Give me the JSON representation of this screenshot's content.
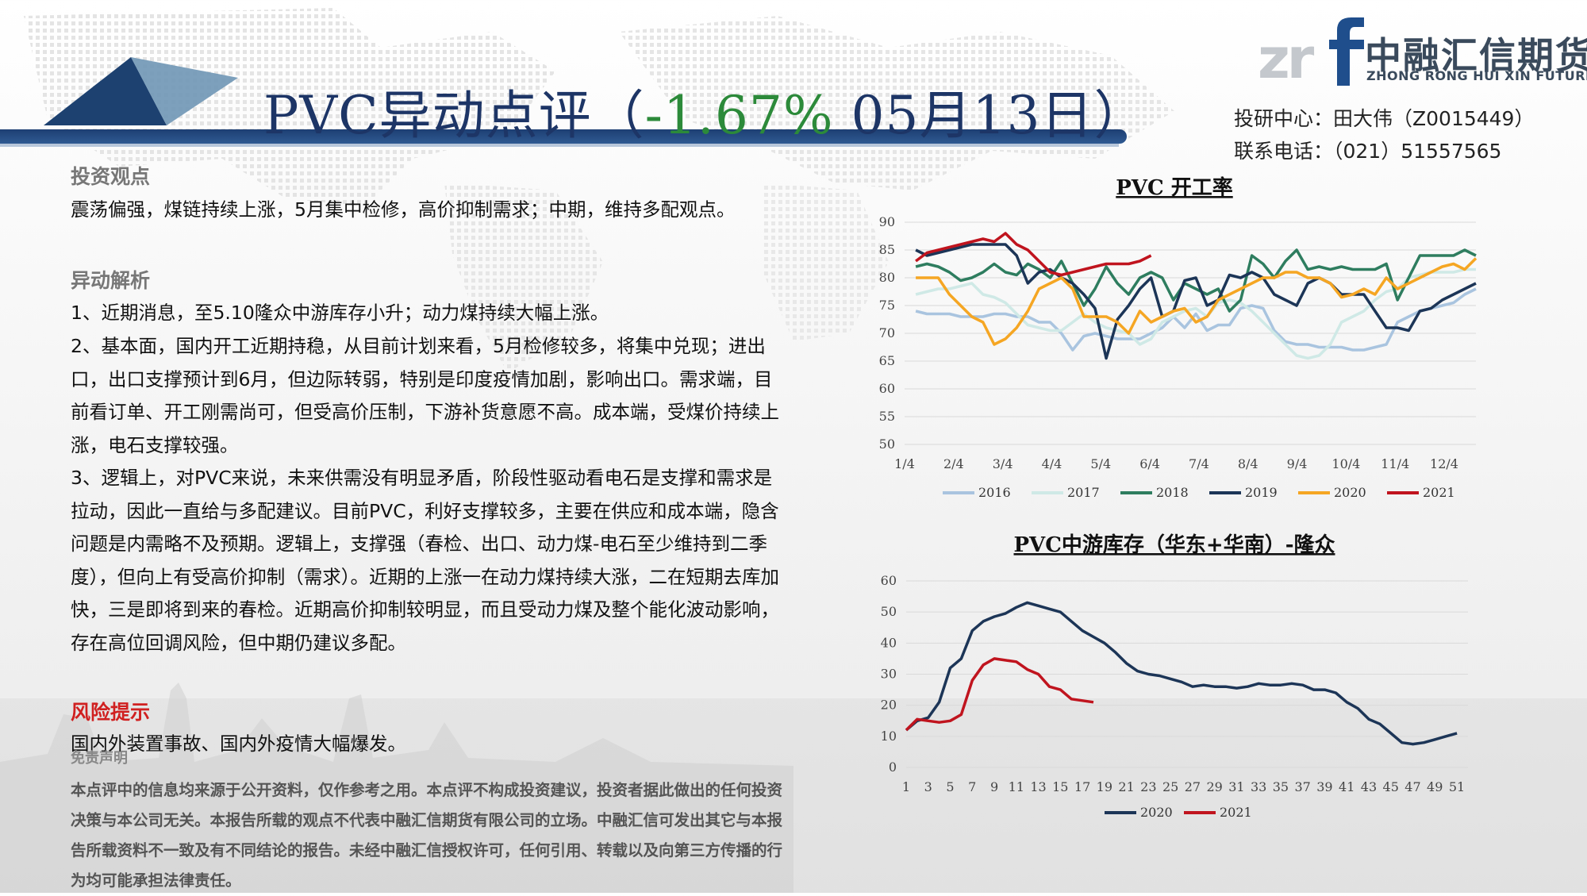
{
  "header": {
    "title_main": "PVC异动点评",
    "title_open": "（",
    "change": "-1.67%",
    "date": " 05月13日",
    "title_close": "）"
  },
  "brand": {
    "name_cn": "中融汇信期货",
    "name_en": "ZHONG RONG HUI XIN FUTURES",
    "colors": {
      "navy": "#1d3f73",
      "logo_blue": "#1f4e8c",
      "gray": "#c4c8cd"
    }
  },
  "contact": {
    "line1": "投研中心：田大伟（Z0015449）",
    "line2": "联系电话：（021）51557565"
  },
  "view": {
    "heading": "投资观点",
    "text": "震荡偏强，煤链持续上涨，5月集中检修，高价抑制需求；中期，维持多配观点。"
  },
  "analysis": {
    "heading": "异动解析",
    "p1": "1、近期消息，至5.10隆众中游库存小升；动力煤持续大幅上涨。",
    "p2": "2、基本面，国内开工近期持稳，从目前计划来看，5月检修较多，将集中兑现；进出口，出口支撑预计到6月，但边际转弱，特别是印度疫情加剧，影响出口。需求端，目前看订单、开工刚需尚可，但受高价压制，下游补货意愿不高。成本端，受煤价持续上涨，电石支撑较强。",
    "p3": "3、逻辑上，对PVC来说，未来供需没有明显矛盾，阶段性驱动看电石是支撑和需求是拉动，因此一直给与多配建议。目前PVC，利好支撑较多，主要在供应和成本端，隐含问题是内需略不及预期。逻辑上，支撑强（春检、出口、动力煤-电石至少维持到二季度），但向上有受高价抑制（需求）。近期的上涨一在动力煤持续大涨，二在短期去库加快，三是即将到来的春检。近期高价抑制较明显，而且受动力煤及整个能化波动影响，存在高位回调风险，但中期仍建议多配。"
  },
  "risk": {
    "heading": "风险提示",
    "text": "国内外装置事故、国内外疫情大幅爆发。"
  },
  "disclaimer": {
    "heading": "免责声明",
    "text": "本点评中的信息均来源于公开资料，仅作参考之用。本点评不构成投资建议，投资者据此做出的任何投资决策与本公司无关。本报告所载的观点不代表中融汇信期货有限公司的立场。中融汇信可发出其它与本报告所载资料不一致及有不同结论的报告。未经中融汇信授权许可，任何引用、转载以及向第三方传播的行为均可能承担法律责任。"
  },
  "chart_data": [
    {
      "type": "line",
      "title": "PVC 开工率",
      "x_tick_labels": [
        "1/4",
        "2/4",
        "3/4",
        "4/4",
        "5/4",
        "6/4",
        "7/4",
        "8/4",
        "9/4",
        "10/4",
        "11/4",
        "12/4"
      ],
      "y_ticks": [
        50,
        55,
        60,
        65,
        70,
        75,
        80,
        85,
        90
      ],
      "ylim": [
        50,
        90
      ],
      "x_unit": "week index (0 = 1/4, 4.33 weeks per month)",
      "xlim": [
        0,
        51
      ],
      "grid": "horizontal",
      "legend_position": "bottom",
      "series": [
        {
          "name": "2016",
          "color": "#a9c4df",
          "x": [
            1,
            2,
            3,
            4,
            5,
            6,
            7,
            8,
            9,
            10,
            11,
            12,
            13,
            14,
            15,
            16,
            17,
            18,
            19,
            20,
            21,
            22,
            23,
            24,
            25,
            26,
            27,
            28,
            29,
            30,
            31,
            32,
            33,
            34,
            35,
            36,
            37,
            38,
            39,
            40,
            41,
            42,
            43,
            44,
            45,
            46,
            47,
            48,
            49,
            50,
            51
          ],
          "values": [
            74,
            73.5,
            73.5,
            73.5,
            73,
            73,
            73,
            73.5,
            73.5,
            73,
            73,
            72,
            72,
            70,
            67,
            69.5,
            70,
            69.5,
            69,
            69,
            69,
            70,
            71,
            73,
            71,
            73.5,
            70.5,
            71.5,
            71.5,
            74.5,
            75,
            74.5,
            70.5,
            68.5,
            68,
            68,
            67.5,
            67.5,
            67.5,
            67,
            67,
            67.5,
            68,
            72,
            73,
            74,
            74.5,
            75,
            75.5,
            77,
            78
          ]
        },
        {
          "name": "2017",
          "color": "#cfe9e6",
          "x": [
            1,
            2,
            3,
            4,
            5,
            6,
            7,
            8,
            9,
            10,
            11,
            12,
            13,
            14,
            15,
            16,
            17,
            18,
            19,
            20,
            21,
            22,
            23,
            24,
            25,
            26,
            27,
            28,
            29,
            30,
            31,
            32,
            33,
            34,
            35,
            36,
            37,
            38,
            39,
            40,
            41,
            42,
            43,
            44,
            45,
            46,
            47,
            48,
            49,
            50,
            51
          ],
          "values": [
            77,
            77.5,
            78,
            78,
            78.5,
            79,
            77,
            76.5,
            75.5,
            73.5,
            71.5,
            71,
            70.5,
            70.5,
            72,
            73.5,
            72,
            71,
            70.5,
            70,
            68,
            69,
            72,
            73,
            74,
            74.5,
            73,
            75.5,
            76,
            75.5,
            74,
            72,
            70,
            68,
            66,
            65.5,
            66,
            68,
            72,
            73,
            74,
            76,
            77.5,
            78,
            80,
            80.5,
            81,
            81,
            81,
            81.5,
            81.5
          ]
        },
        {
          "name": "2018",
          "color": "#2e7d5f",
          "x": [
            1,
            2,
            3,
            4,
            5,
            6,
            7,
            8,
            9,
            10,
            11,
            12,
            13,
            14,
            15,
            16,
            17,
            18,
            19,
            20,
            21,
            22,
            23,
            24,
            25,
            26,
            27,
            28,
            29,
            30,
            31,
            32,
            33,
            34,
            35,
            36,
            37,
            38,
            39,
            40,
            41,
            42,
            43,
            44,
            45,
            46,
            47,
            48,
            49,
            50,
            51
          ],
          "values": [
            82,
            82.5,
            82,
            81,
            79.5,
            80,
            81,
            82.5,
            81,
            80.5,
            82.5,
            81.5,
            80,
            83,
            79,
            75,
            78,
            82,
            79,
            77,
            80,
            81,
            80,
            76,
            79,
            78,
            77,
            78,
            74,
            76,
            84,
            82.5,
            80,
            83,
            85,
            81.5,
            82,
            81.5,
            82,
            81.5,
            81.5,
            81.5,
            82.5,
            76,
            80,
            84,
            84,
            84,
            84,
            85,
            84
          ]
        },
        {
          "name": "2019",
          "color": "#1c3557",
          "x": [
            1,
            2,
            3,
            4,
            5,
            6,
            7,
            8,
            9,
            10,
            11,
            12,
            13,
            14,
            15,
            16,
            17,
            18,
            19,
            20,
            21,
            22,
            23,
            24,
            25,
            26,
            27,
            28,
            29,
            30,
            31,
            32,
            33,
            34,
            35,
            36,
            37,
            38,
            39,
            40,
            41,
            42,
            43,
            44,
            45,
            46,
            47,
            48,
            49,
            50,
            51
          ],
          "values": [
            85,
            84,
            84.5,
            85,
            85.5,
            86,
            86,
            86,
            86,
            84,
            79,
            81,
            81.5,
            80,
            79,
            77,
            74.5,
            65.5,
            72.5,
            75,
            78,
            80,
            73,
            74,
            79.5,
            80,
            75,
            76,
            80.5,
            80,
            81,
            80,
            77,
            76,
            75,
            79,
            80,
            79,
            77,
            77,
            77,
            74,
            71,
            71,
            70.5,
            74,
            74.5,
            76,
            77,
            78,
            79
          ]
        },
        {
          "name": "2020",
          "color": "#f5a623",
          "x": [
            1,
            2,
            3,
            4,
            5,
            6,
            7,
            8,
            9,
            10,
            11,
            12,
            13,
            14,
            15,
            16,
            17,
            18,
            19,
            20,
            21,
            22,
            23,
            24,
            25,
            26,
            27,
            28,
            29,
            30,
            31,
            32,
            33,
            34,
            35,
            36,
            37,
            38,
            39,
            40,
            41,
            42,
            43,
            44,
            45,
            46,
            47,
            48,
            49,
            50,
            51
          ],
          "values": [
            80,
            80,
            80,
            77,
            75,
            73,
            72,
            68,
            69,
            71,
            74,
            78,
            79,
            80,
            78,
            73,
            73,
            73,
            72,
            70,
            74,
            72,
            73,
            74,
            74.5,
            72,
            73,
            76,
            77,
            78,
            79,
            80,
            80,
            81,
            81,
            80,
            80,
            79,
            76.5,
            77,
            78,
            77,
            80,
            78,
            79,
            80,
            81,
            82,
            82.5,
            81.5,
            83.5
          ]
        },
        {
          "name": "2021",
          "color": "#c0141e",
          "x": [
            1,
            2,
            3,
            4,
            5,
            6,
            7,
            8,
            9,
            10,
            11,
            12,
            13,
            14,
            15,
            16,
            17,
            18,
            19,
            20,
            21,
            22
          ],
          "values": [
            83,
            84.5,
            85,
            85.5,
            86,
            86.5,
            87,
            86.5,
            88,
            86,
            85,
            83,
            81,
            80.5,
            81,
            81.5,
            82,
            82.5,
            82.5,
            82.5,
            83,
            84
          ]
        }
      ]
    },
    {
      "type": "line",
      "title": "PVC中游库存（华东+华南）-隆众",
      "x_tick_labels": [
        "1",
        "3",
        "5",
        "7",
        "9",
        "11",
        "13",
        "15",
        "17",
        "19",
        "21",
        "23",
        "25",
        "27",
        "29",
        "31",
        "33",
        "35",
        "37",
        "39",
        "41",
        "43",
        "45",
        "47",
        "49",
        "51"
      ],
      "y_ticks": [
        0,
        10,
        20,
        30,
        40,
        50,
        60
      ],
      "ylim": [
        0,
        60
      ],
      "x_unit": "week",
      "xlim": [
        1,
        52
      ],
      "grid": "horizontal",
      "legend_position": "bottom",
      "series": [
        {
          "name": "2020",
          "color": "#1c3557",
          "x": [
            1,
            2,
            3,
            4,
            5,
            6,
            7,
            8,
            9,
            10,
            11,
            12,
            13,
            14,
            15,
            16,
            17,
            18,
            19,
            20,
            21,
            22,
            23,
            24,
            25,
            26,
            27,
            28,
            29,
            30,
            31,
            32,
            33,
            34,
            35,
            36,
            37,
            38,
            39,
            40,
            41,
            42,
            43,
            44,
            45,
            46,
            47,
            48,
            49,
            50,
            51
          ],
          "values": [
            12,
            15,
            16,
            21,
            32,
            35,
            44,
            47,
            48.5,
            49.5,
            51.5,
            53,
            52,
            51,
            50,
            47,
            44,
            42,
            40,
            37,
            33.5,
            31,
            30,
            29.5,
            28.5,
            27.5,
            26,
            26.5,
            26,
            26,
            25.5,
            26,
            27,
            26.5,
            26.5,
            27,
            26.5,
            25,
            25,
            24,
            21,
            19,
            15.5,
            14,
            11,
            8,
            7.5,
            8,
            9,
            10,
            11
          ]
        },
        {
          "name": "2021",
          "color": "#c0141e",
          "x": [
            1,
            2,
            3,
            4,
            5,
            6,
            7,
            8,
            9,
            10,
            11,
            12,
            13,
            14,
            15,
            16,
            17,
            18
          ],
          "values": [
            12,
            15.5,
            15,
            14.5,
            15,
            17,
            28,
            33,
            35,
            34.5,
            34,
            31.5,
            30,
            26,
            25,
            22,
            21.5,
            21
          ]
        }
      ]
    }
  ]
}
